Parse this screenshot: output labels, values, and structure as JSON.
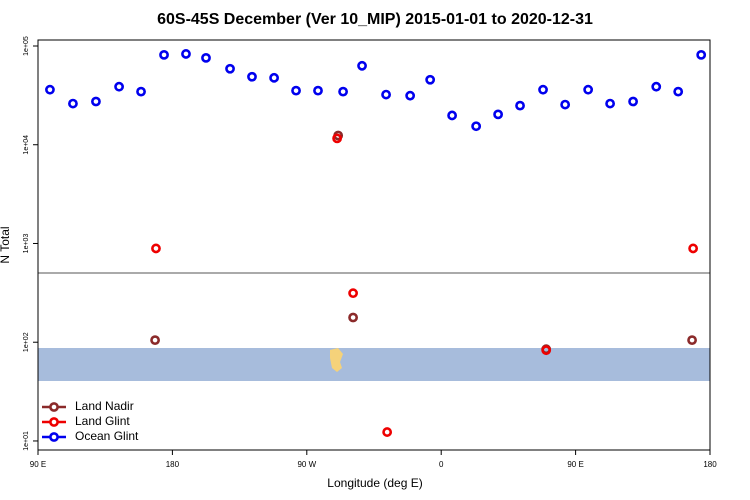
{
  "chart_data": {
    "type": "scatter",
    "title": "60S-45S December (Ver 10_MIP)   2015-01-01 to 2020-12-31",
    "xlabel": "Longitude (deg E)",
    "ylabel": "N Total",
    "xlim": [
      90,
      540
    ],
    "xticks": [
      {
        "value": 90,
        "label": "90 E"
      },
      180,
      {
        "value": 270,
        "label": "90 W"
      },
      {
        "value": 360,
        "label": "0"
      },
      {
        "value": 450,
        "label": "90 E"
      },
      {
        "value": 540,
        "label": "180"
      }
    ],
    "ylim": [
      8.1,
      115000
    ],
    "log_y": true,
    "yticks": [
      {
        "value": 10,
        "label": "1e+01"
      },
      {
        "value": 100,
        "label": "1e+02"
      },
      {
        "value": 1000,
        "label": "1e+03"
      },
      {
        "value": 10000,
        "label": "1e+04"
      },
      {
        "value": 100000,
        "label": "1e+05"
      }
    ],
    "legend": "lower left",
    "series": [
      {
        "name": "Land Nadir",
        "color": "#8b2a2a",
        "x": [
          168.4,
          291,
          301,
          430.3,
          528
        ],
        "values": [
          105,
          12400,
          178,
          85,
          105
        ]
      },
      {
        "name": "Land Glint",
        "color": "#ee0000",
        "x": [
          169,
          290.3,
          301,
          323.8,
          430.3,
          528.7
        ],
        "values": [
          891,
          11600,
          314,
          12.3,
          83,
          891
        ]
      },
      {
        "name": "Ocean Glint",
        "color": "#0000ee",
        "x": [
          98,
          113.4,
          128.8,
          144.3,
          159,
          174.4,
          189.1,
          202.5,
          218.6,
          233.3,
          248.1,
          262.8,
          277.5,
          294.3,
          307,
          323.1,
          339.2,
          352.6,
          367.3,
          383.4,
          398.1,
          412.8,
          428.2,
          443,
          458.4,
          473.1,
          488.5,
          504,
          518.7,
          534.1
        ],
        "values": [
          36100,
          26100,
          27400,
          38700,
          34500,
          81300,
          83100,
          75800,
          58800,
          48800,
          47600,
          35300,
          35300,
          34500,
          63000,
          32200,
          31400,
          45500,
          19800,
          15400,
          20300,
          24900,
          36100,
          25500,
          36100,
          26100,
          27400,
          38700,
          34500,
          81300
        ]
      }
    ]
  }
}
